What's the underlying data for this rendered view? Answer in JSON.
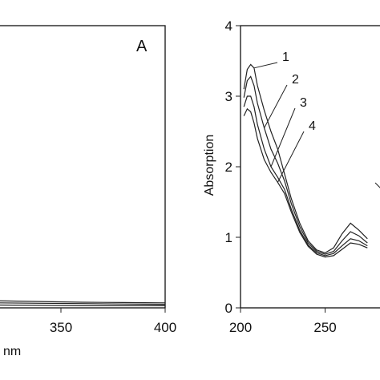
{
  "chart_data": [
    {
      "type": "line",
      "panel_label": "A",
      "xlabel": "nm",
      "ylabel": "",
      "x_ticks": [
        "350",
        "400"
      ],
      "xlim": [
        320,
        400
      ],
      "ylim": [
        0,
        4
      ],
      "series": [
        {
          "x": [
            320,
            340,
            360,
            380,
            400
          ],
          "values": [
            0.1,
            0.09,
            0.08,
            0.075,
            0.07
          ]
        },
        {
          "x": [
            320,
            340,
            360,
            380,
            400
          ],
          "values": [
            0.07,
            0.065,
            0.06,
            0.055,
            0.05
          ]
        },
        {
          "x": [
            320,
            340,
            360,
            380,
            400
          ],
          "values": [
            0.04,
            0.035,
            0.03,
            0.03,
            0.03
          ]
        }
      ]
    },
    {
      "type": "line",
      "ylabel": "Absorption",
      "xlabel": "",
      "x_ticks": [
        "200",
        "250"
      ],
      "y_ticks": [
        "0",
        "1",
        "2",
        "3",
        "4"
      ],
      "xlim": [
        200,
        290
      ],
      "ylim": [
        0,
        4
      ],
      "series": [
        {
          "name": "1",
          "x": [
            202,
            204,
            206,
            208,
            210,
            214,
            218,
            222,
            226,
            230,
            235,
            240,
            245,
            250,
            255,
            260,
            265,
            270,
            275
          ],
          "values": [
            3.1,
            3.38,
            3.45,
            3.4,
            3.15,
            2.8,
            2.5,
            2.25,
            1.9,
            1.55,
            1.2,
            0.95,
            0.82,
            0.78,
            0.85,
            1.05,
            1.2,
            1.1,
            0.98
          ]
        },
        {
          "name": "2",
          "x": [
            202,
            204,
            206,
            208,
            210,
            214,
            218,
            222,
            226,
            230,
            235,
            240,
            245,
            250,
            255,
            260,
            265,
            270,
            275
          ],
          "values": [
            2.98,
            3.22,
            3.28,
            3.15,
            2.9,
            2.55,
            2.25,
            2.05,
            1.8,
            1.48,
            1.15,
            0.92,
            0.8,
            0.76,
            0.8,
            0.95,
            1.08,
            1.02,
            0.92
          ]
        },
        {
          "name": "3",
          "x": [
            202,
            204,
            206,
            208,
            210,
            214,
            218,
            222,
            226,
            230,
            235,
            240,
            245,
            250,
            255,
            260,
            265,
            270,
            275
          ],
          "values": [
            2.85,
            3.0,
            3.0,
            2.85,
            2.6,
            2.25,
            2.0,
            1.85,
            1.68,
            1.4,
            1.1,
            0.89,
            0.78,
            0.74,
            0.77,
            0.88,
            0.98,
            0.95,
            0.88
          ]
        },
        {
          "name": "4",
          "x": [
            202,
            204,
            206,
            208,
            210,
            214,
            218,
            222,
            226,
            230,
            235,
            240,
            245,
            250,
            255,
            260,
            265,
            270,
            275
          ],
          "values": [
            2.72,
            2.82,
            2.78,
            2.62,
            2.4,
            2.1,
            1.92,
            1.78,
            1.62,
            1.36,
            1.07,
            0.87,
            0.76,
            0.72,
            0.74,
            0.83,
            0.92,
            0.9,
            0.85
          ]
        }
      ]
    }
  ]
}
